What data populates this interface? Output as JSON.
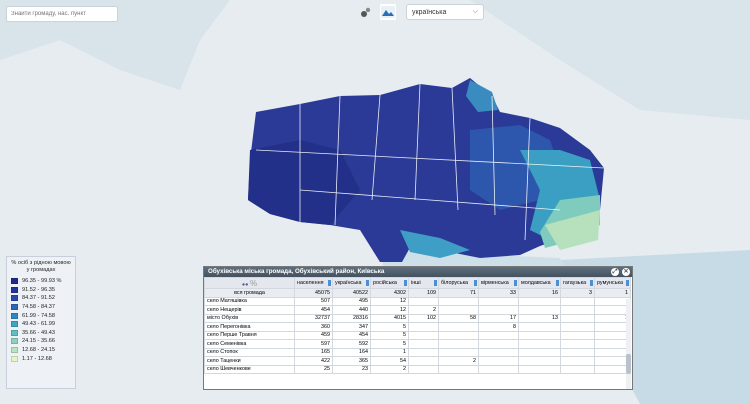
{
  "search": {
    "placeholder": "Знайти громаду, нас. пункт"
  },
  "top_icons": [
    "layers-icon",
    "map-icon"
  ],
  "language": {
    "selected": "українська"
  },
  "legend": {
    "title": "% осіб з рідною мовою у громадах",
    "items": [
      {
        "label": "96.35 - 99.93 %",
        "color": "#1f2a8a"
      },
      {
        "label": "91.52 - 96.35",
        "color": "#23349a"
      },
      {
        "label": "84.37 - 91.52",
        "color": "#2b4aa8"
      },
      {
        "label": "74.58 - 84.37",
        "color": "#2d68b6"
      },
      {
        "label": "61.99 - 74.58",
        "color": "#2f88c0"
      },
      {
        "label": "49.43 - 61.99",
        "color": "#3ea4c4"
      },
      {
        "label": "35.66 - 49.43",
        "color": "#62bdc1"
      },
      {
        "label": "24.15 - 35.66",
        "color": "#8dd0bd"
      },
      {
        "label": "12.68 - 24.15",
        "color": "#b9e3bd"
      },
      {
        "label": "1.17 - 12.68",
        "color": "#e6f4c7"
      }
    ]
  },
  "panel": {
    "title": "Обухівська міська громада, Обухівський район, Київська",
    "pct_symbol": "%",
    "columns": [
      "населення",
      "українська",
      "російська",
      "інші",
      "білоруська",
      "вірменська",
      "молдавська",
      "гагаузька",
      "румунська"
    ],
    "total": {
      "label": "вся громада",
      "values": [
        "45075",
        "40522",
        "4302",
        "109",
        "71",
        "33",
        "16",
        "3",
        "1"
      ]
    },
    "rows": [
      {
        "name": "село Матяшівка",
        "values": [
          "507",
          "495",
          "12",
          "",
          "",
          "",
          "",
          "",
          ""
        ]
      },
      {
        "name": "село Нещерів",
        "values": [
          "454",
          "440",
          "12",
          "2",
          "",
          "",
          "",
          "",
          ""
        ]
      },
      {
        "name": "місто Обухів",
        "values": [
          "32737",
          "28316",
          "4015",
          "102",
          "58",
          "17",
          "13",
          "",
          "1"
        ]
      },
      {
        "name": "село Перегонівка",
        "values": [
          "360",
          "347",
          "5",
          "",
          "",
          "8",
          "",
          "",
          ""
        ]
      },
      {
        "name": "село Перше Травня",
        "values": [
          "459",
          "454",
          "5",
          "",
          "",
          "",
          "",
          "",
          ""
        ]
      },
      {
        "name": "село Семенівка",
        "values": [
          "597",
          "592",
          "5",
          "",
          "",
          "",
          "",
          "",
          ""
        ]
      },
      {
        "name": "село Стопок",
        "values": [
          "165",
          "164",
          "1",
          "",
          "",
          "",
          "",
          "",
          ""
        ]
      },
      {
        "name": "село Таценки",
        "values": [
          "422",
          "365",
          "54",
          "",
          "2",
          "",
          "",
          "",
          ""
        ]
      },
      {
        "name": "село Шевченкове",
        "values": [
          "25",
          "23",
          "2",
          "",
          "",
          "",
          "",
          "",
          ""
        ]
      }
    ]
  }
}
